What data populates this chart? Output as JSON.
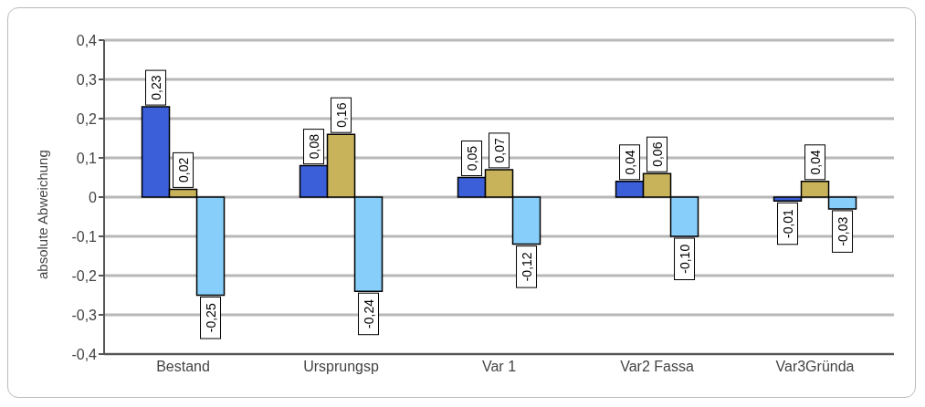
{
  "chart_data": {
    "type": "bar",
    "ylabel": "absolute Abweichung",
    "categories": [
      "Bestand",
      "Ursprungsp",
      "Var 1",
      "Var2 Fassa",
      "Var3Gründa"
    ],
    "series": [
      {
        "color": "#3a5fd8",
        "values": [
          0.23,
          0.08,
          0.05,
          0.04,
          -0.01
        ],
        "value_labels": [
          "0,23",
          "0,08",
          "0,05",
          "0,04",
          "-0,01"
        ]
      },
      {
        "color": "#c8b35a",
        "values": [
          0.02,
          0.16,
          0.07,
          0.06,
          0.04
        ],
        "value_labels": [
          "0,02",
          "0,16",
          "0,07",
          "0,06",
          "0,04"
        ]
      },
      {
        "color": "#87cefa",
        "values": [
          -0.25,
          -0.24,
          -0.12,
          -0.1,
          -0.03
        ],
        "value_labels": [
          "-0,25",
          "-0,24",
          "-0,12",
          "-0,10",
          "-0,03"
        ]
      }
    ],
    "ylim": [
      -0.4,
      0.4
    ],
    "yticks": [
      {
        "value": -0.4,
        "label": "-0,4"
      },
      {
        "value": -0.3,
        "label": "-0,3"
      },
      {
        "value": -0.2,
        "label": "-0,2"
      },
      {
        "value": -0.1,
        "label": "-0,1"
      },
      {
        "value": 0,
        "label": "0"
      },
      {
        "value": 0.1,
        "label": "0,1"
      },
      {
        "value": 0.2,
        "label": "0,2"
      },
      {
        "value": 0.3,
        "label": "0,3"
      },
      {
        "value": 0.4,
        "label": "0,4"
      }
    ],
    "grid": "y",
    "legend": false
  }
}
